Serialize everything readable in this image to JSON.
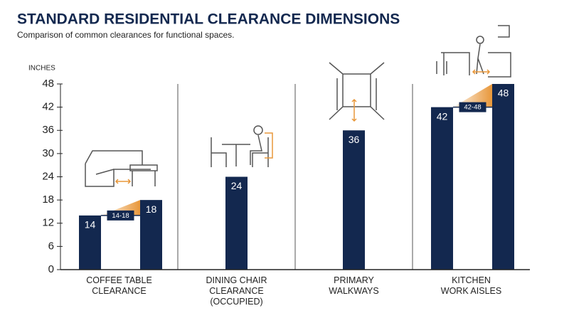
{
  "chart_data": {
    "type": "range-bar",
    "title": "STANDARD RESIDENTIAL CLEARANCE DIMENSIONS",
    "subtitle": "Comparison of common clearances for functional spaces.",
    "y_label": "INCHES",
    "ylim": [
      0,
      48
    ],
    "yticks": [
      0,
      6,
      12,
      18,
      24,
      30,
      36,
      42,
      48
    ],
    "color": "#13284f",
    "accent_color": "#e8973a",
    "bars": [
      {
        "label": "COFFEE TABLE\nCLEARANCE",
        "values": [
          14,
          18
        ],
        "range_label": "14-18"
      },
      {
        "label": "DINING CHAIR\nCLEARANCE\n(OCCUPIED)",
        "values": [
          24
        ]
      },
      {
        "label": "PRIMARY\nWALKWAYS",
        "values": [
          36
        ]
      },
      {
        "label": "KITCHEN\nWORK AISLES",
        "values": [
          42,
          48
        ],
        "range_label": "42-48"
      }
    ]
  }
}
